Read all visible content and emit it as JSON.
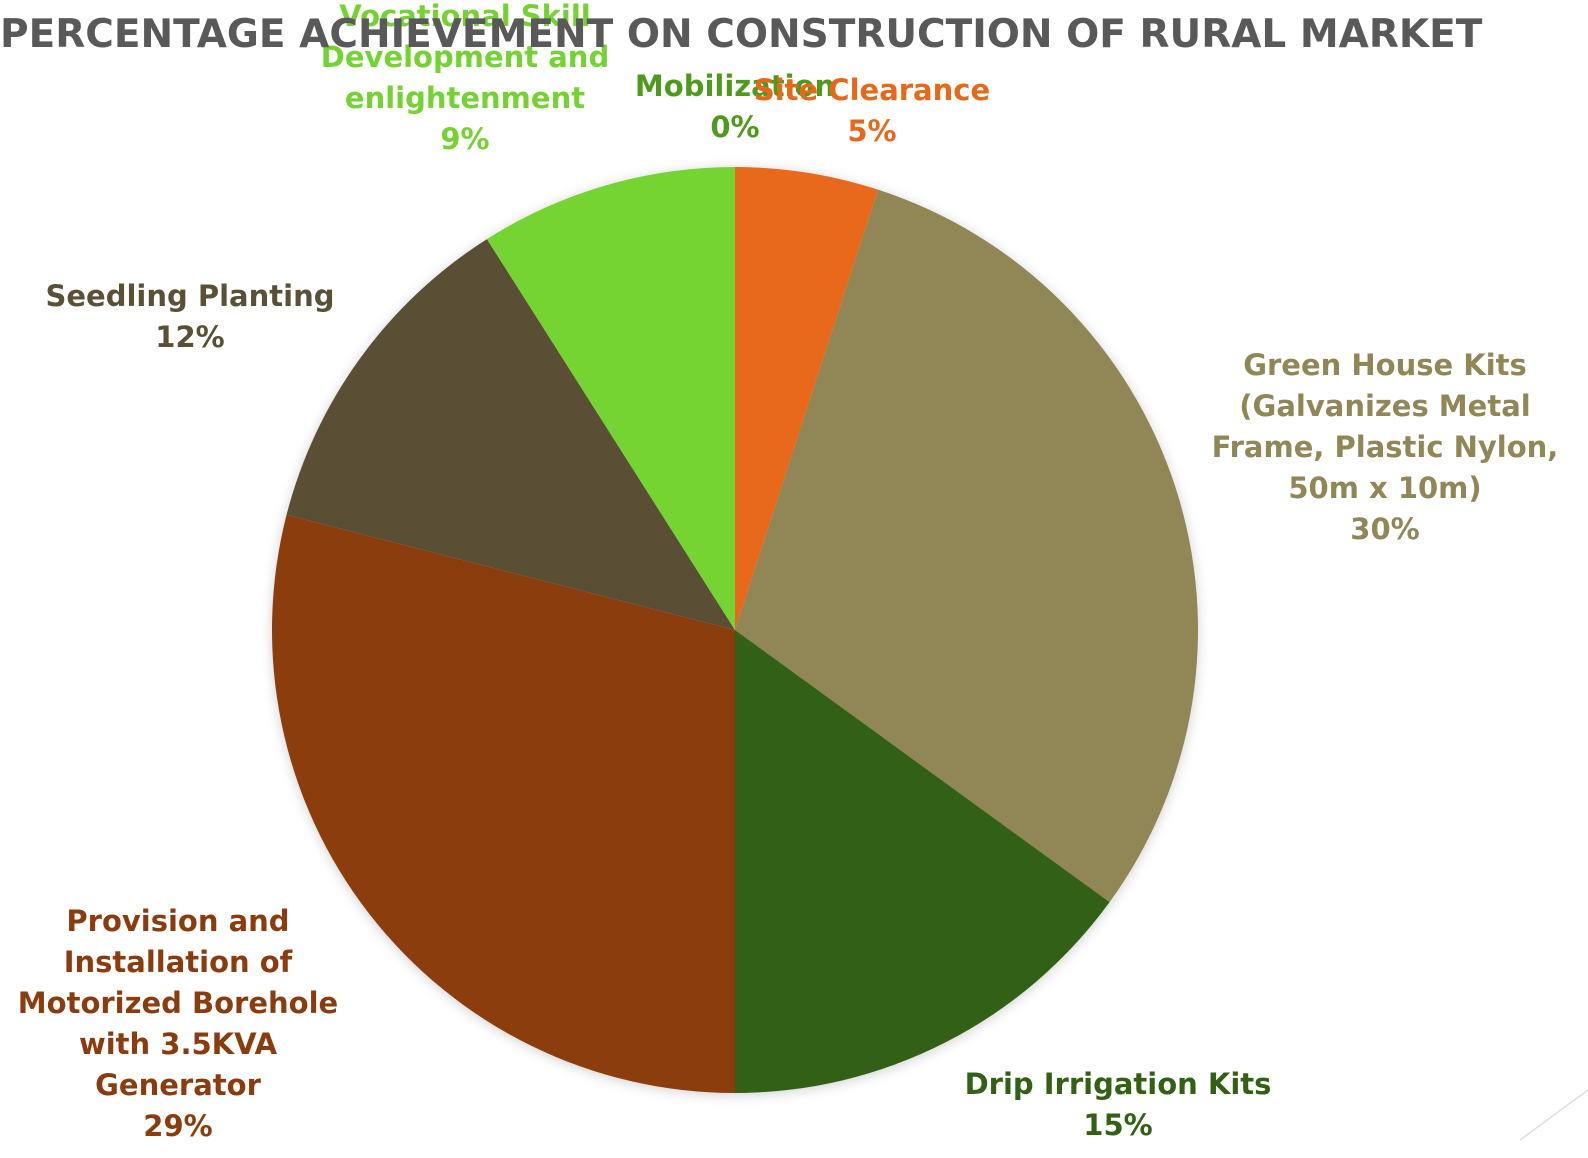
{
  "chart_data": {
    "type": "pie",
    "title": "PERCENTAGE ACHIEVEMENT ON CONSTRUCTION OF RURAL MARKET",
    "categories": [
      "Mobilization",
      "Site Clearance",
      "Green House Kits (Galvanizes Metal Frame, Plastic Nylon, 50m x 10m)",
      "Drip Irrigation Kits",
      "Provision and Installation of Motorized Borehole with 3.5KVA Generator",
      "Seedling Planting",
      "Vocational Skill Development and enlightenment"
    ],
    "values": [
      0,
      5,
      30,
      15,
      29,
      12,
      9
    ],
    "value_labels": [
      "0%",
      "5%",
      "30%",
      "15%",
      "29%",
      "12%",
      "9%"
    ],
    "colors": [
      "#4f9a1c",
      "#e8681a",
      "#908656",
      "#336114",
      "#8b3c0e",
      "#5a5035",
      "#74d332"
    ]
  }
}
